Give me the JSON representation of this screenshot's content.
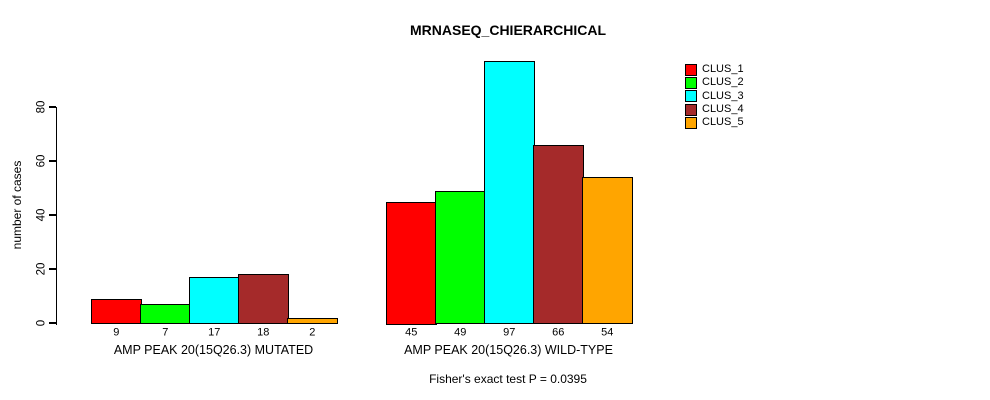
{
  "chart_data": {
    "type": "bar",
    "title": "MRNASEQ_CHIERARCHICAL",
    "ylabel": "number of cases",
    "xlabel": "",
    "ylim": [
      0,
      80
    ],
    "yticks": [
      0,
      20,
      40,
      60,
      80
    ],
    "grid": false,
    "legend_position": "top-right",
    "categories": [
      "AMP PEAK 20(15Q26.3) MUTATED",
      "AMP PEAK 20(15Q26.3) WILD-TYPE"
    ],
    "series": [
      {
        "name": "CLUS_1",
        "color": "#ff0000",
        "values": [
          9,
          45
        ]
      },
      {
        "name": "CLUS_2",
        "color": "#00ff00",
        "values": [
          7,
          49
        ]
      },
      {
        "name": "CLUS_3",
        "color": "#00ffff",
        "values": [
          17,
          97
        ]
      },
      {
        "name": "CLUS_4",
        "color": "#a52a2a",
        "values": [
          18,
          66
        ]
      },
      {
        "name": "CLUS_5",
        "color": "#ffa500",
        "values": [
          2,
          54
        ]
      }
    ],
    "bar_value_labels": {
      "AMP PEAK 20(15Q26.3) MUTATED": [
        9,
        7,
        17,
        18,
        2
      ],
      "AMP PEAK 20(15Q26.3) WILD-TYPE": [
        45,
        49,
        97,
        66,
        54
      ]
    },
    "annotation": "Fisher's exact test P = 0.0395"
  }
}
